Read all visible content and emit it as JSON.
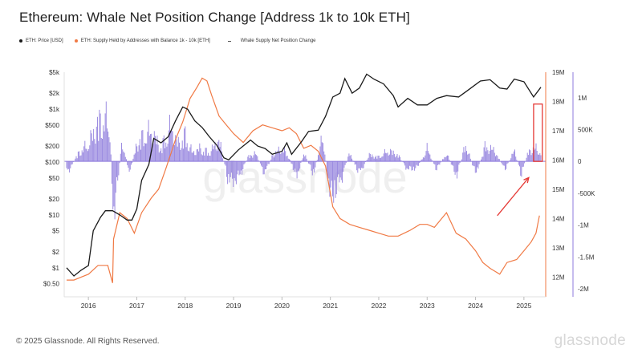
{
  "title": "Ethereum: Whale Net Position Change [Address 1k to 10k ETH]",
  "legend": [
    {
      "label": "ETH: Price [USD]",
      "color": "#1a1a1a",
      "marker": "dot"
    },
    {
      "label": "ETH: Supply Held by Addresses with Balance 1k - 10k [ETH]",
      "color": "#f07a45",
      "marker": "dot"
    },
    {
      "label": "Whale Supply Net Position Change",
      "color": "#8c79dc",
      "marker": "dash"
    }
  ],
  "footer": "© 2025 Glassnode. All Rights Reserved.",
  "brand": "glassnode",
  "watermark": "glassnode",
  "colors": {
    "price": "#1a1a1a",
    "supply": "#f07a45",
    "netchange": "#8c79dc",
    "annotation": "#e53935"
  },
  "chart_data": {
    "type": "line",
    "x_ticks": [
      "2016",
      "2017",
      "2018",
      "2019",
      "2020",
      "2021",
      "2022",
      "2023",
      "2024",
      "2025"
    ],
    "x_range": [
      2015.6,
      2025.55
    ],
    "price_axis": {
      "scale": "log",
      "range": [
        0.4,
        5000
      ],
      "tick_labels": [
        "$5k",
        "$2k",
        "$1k",
        "$500",
        "$200",
        "$100",
        "$50",
        "$20",
        "$10",
        "$5",
        "$2",
        "$1",
        "$0.50"
      ],
      "tick_values": [
        5000,
        2000,
        1000,
        500,
        200,
        100,
        50,
        20,
        10,
        5,
        2,
        1,
        0.5
      ]
    },
    "supply_axis": {
      "range": [
        11600000,
        19000000
      ],
      "tick_labels": [
        "19M",
        "18M",
        "17M",
        "16M",
        "15M",
        "14M",
        "13M",
        "12M"
      ],
      "tick_values": [
        19000000,
        18000000,
        17000000,
        16000000,
        15000000,
        14000000,
        13000000,
        12000000
      ]
    },
    "netchange_axis": {
      "range": [
        -2000000,
        1400000
      ],
      "tick_labels": [
        "1M",
        "500K",
        "0",
        "-500K",
        "-1M",
        "-1.5M",
        "-2M"
      ],
      "tick_values": [
        1000000,
        500000,
        0,
        -500000,
        -1000000,
        -1500000,
        -2000000
      ]
    },
    "series": [
      {
        "name": "ETH: Price [USD]",
        "x": [
          2015.65,
          2015.8,
          2015.95,
          2016.1,
          2016.2,
          2016.35,
          2016.45,
          2016.6,
          2016.75,
          2016.9,
          2017.0,
          2017.1,
          2017.2,
          2017.35,
          2017.45,
          2017.6,
          2017.75,
          2017.9,
          2018.05,
          2018.15,
          2018.3,
          2018.45,
          2018.6,
          2018.75,
          2018.9,
          2019.0,
          2019.2,
          2019.45,
          2019.6,
          2019.75,
          2019.9,
          2020.1,
          2020.2,
          2020.3,
          2020.5,
          2020.65,
          2020.85,
          2021.0,
          2021.15,
          2021.3,
          2021.4,
          2021.55,
          2021.7,
          2021.85,
          2022.0,
          2022.2,
          2022.4,
          2022.5,
          2022.7,
          2022.9,
          2023.1,
          2023.3,
          2023.5,
          2023.75,
          2023.95,
          2024.2,
          2024.4,
          2024.6,
          2024.75,
          2024.9,
          2025.1,
          2025.3,
          2025.45
        ],
        "values": [
          1.0,
          0.7,
          0.9,
          1.1,
          5,
          9,
          12,
          12,
          10,
          8,
          8,
          13,
          45,
          90,
          280,
          230,
          300,
          600,
          1100,
          1000,
          600,
          450,
          300,
          210,
          120,
          110,
          170,
          260,
          200,
          180,
          140,
          160,
          230,
          140,
          240,
          380,
          400,
          730,
          1700,
          2000,
          3800,
          2000,
          2500,
          4600,
          3700,
          3000,
          1800,
          1100,
          1600,
          1200,
          1200,
          1600,
          1800,
          1700,
          2300,
          3400,
          3600,
          2500,
          2400,
          3700,
          3300,
          1700,
          2600
        ]
      },
      {
        "name": "ETH: Supply Held by Addresses with Balance 1k - 10k [ETH]",
        "x": [
          2015.65,
          2015.8,
          2015.95,
          2016.1,
          2016.3,
          2016.5,
          2016.6,
          2016.62,
          2016.75,
          2016.9,
          2017.05,
          2017.2,
          2017.4,
          2017.55,
          2017.7,
          2017.9,
          2018.05,
          2018.2,
          2018.35,
          2018.45,
          2018.55,
          2018.65,
          2018.8,
          2018.95,
          2019.1,
          2019.3,
          2019.5,
          2019.7,
          2019.9,
          2020.1,
          2020.25,
          2020.4,
          2020.55,
          2020.7,
          2020.85,
          2021.0,
          2021.15,
          2021.3,
          2021.5,
          2021.7,
          2021.9,
          2022.1,
          2022.3,
          2022.5,
          2022.75,
          2022.95,
          2023.1,
          2023.25,
          2023.4,
          2023.5,
          2023.7,
          2023.9,
          2024.1,
          2024.25,
          2024.4,
          2024.5,
          2024.6,
          2024.75,
          2024.95,
          2025.1,
          2025.25,
          2025.35,
          2025.42
        ],
        "values": [
          11900000,
          11900000,
          12000000,
          12100000,
          12400000,
          12400000,
          11800000,
          13300000,
          14200000,
          14000000,
          13500000,
          14200000,
          14700000,
          15000000,
          15700000,
          16700000,
          17300000,
          18100000,
          18500000,
          18800000,
          18700000,
          18200000,
          17500000,
          17200000,
          16900000,
          16600000,
          17000000,
          17200000,
          17100000,
          17000000,
          17100000,
          16900000,
          16400000,
          16500000,
          16300000,
          15800000,
          14400000,
          14000000,
          13800000,
          13700000,
          13600000,
          13500000,
          13400000,
          13400000,
          13600000,
          13800000,
          13800000,
          13700000,
          14000000,
          14200000,
          13500000,
          13300000,
          12900000,
          12500000,
          12300000,
          12200000,
          12100000,
          12500000,
          12600000,
          12900000,
          13200000,
          13500000,
          14100000
        ]
      },
      {
        "name": "Whale Supply Net Position Change",
        "x": [
          2015.65,
          2015.9,
          2016.1,
          2016.3,
          2016.45,
          2016.55,
          2016.62,
          2016.8,
          2016.95,
          2017.1,
          2017.25,
          2017.4,
          2017.6,
          2017.8,
          2017.95,
          2018.1,
          2018.25,
          2018.4,
          2018.6,
          2018.8,
          2019.0,
          2019.2,
          2019.4,
          2019.55,
          2019.75,
          2019.9,
          2020.1,
          2020.25,
          2020.4,
          2020.55,
          2020.75,
          2020.95,
          2021.1,
          2021.3,
          2021.5,
          2021.7,
          2021.9,
          2022.1,
          2022.3,
          2022.5,
          2022.7,
          2022.9,
          2023.1,
          2023.3,
          2023.5,
          2023.7,
          2023.9,
          2024.1,
          2024.3,
          2024.5,
          2024.7,
          2024.9,
          2025.05,
          2025.2,
          2025.35,
          2025.45
        ],
        "values": [
          -300000,
          200000,
          400000,
          900000,
          1000000,
          700000,
          -1400000,
          500000,
          -300000,
          400000,
          600000,
          700000,
          300000,
          800000,
          400000,
          600000,
          200000,
          300000,
          200000,
          500000,
          -500000,
          -400000,
          100000,
          200000,
          -300000,
          150000,
          300000,
          100000,
          -400000,
          200000,
          -300000,
          600000,
          -900000,
          -500000,
          200000,
          -300000,
          150000,
          100000,
          250000,
          150000,
          -200000,
          -150000,
          300000,
          -200000,
          200000,
          -350000,
          400000,
          -300000,
          350000,
          250000,
          -200000,
          250000,
          -300000,
          250000,
          300000,
          200000
        ]
      }
    ],
    "annotations": [
      {
        "type": "highlight-box",
        "x_range": [
          2025.3,
          2025.48
        ],
        "netchange_range": [
          0,
          900000
        ]
      },
      {
        "type": "arrow",
        "x_from": 2024.55,
        "x_to": 2025.2,
        "supply_from": 14100000,
        "supply_to": 15400000
      }
    ],
    "grid": false,
    "legend_position": "top-left"
  }
}
